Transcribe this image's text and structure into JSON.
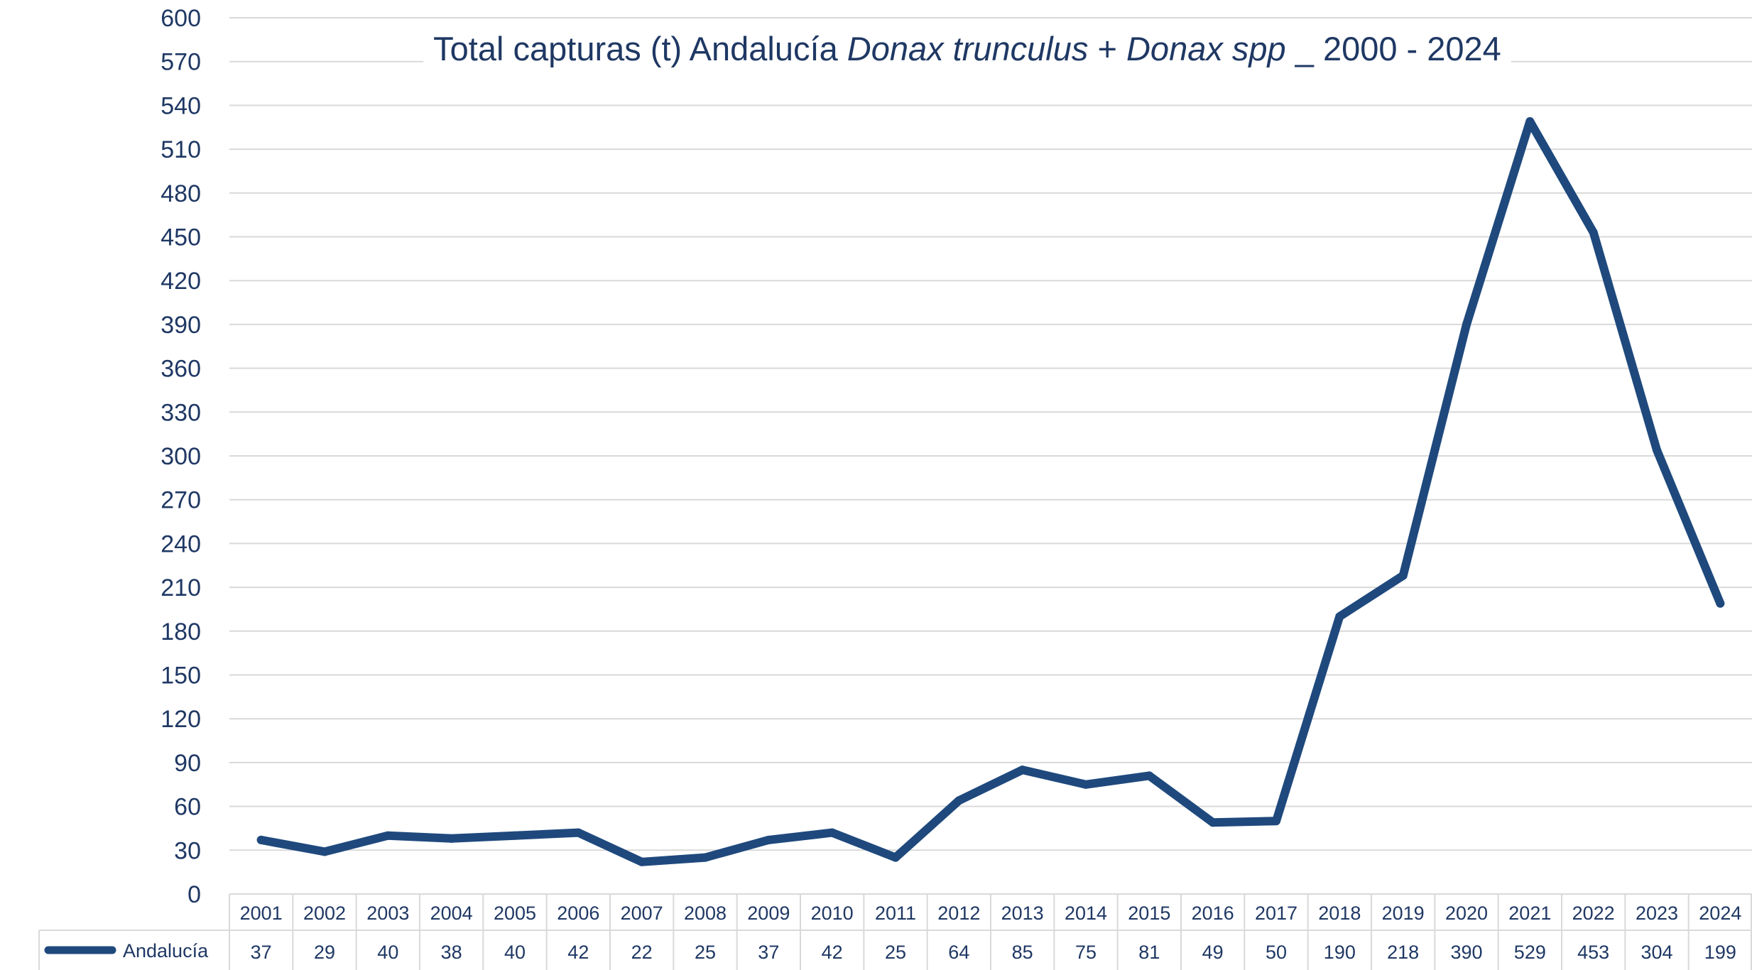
{
  "chart_data": {
    "type": "line",
    "title": {
      "parts": [
        {
          "text": "Total capturas (t) Andalucía ",
          "italic": false
        },
        {
          "text": "Donax trunculus",
          "italic": true
        },
        {
          "text": " + ",
          "italic": false
        },
        {
          "text": "Donax spp",
          "italic": true
        },
        {
          "text": " _ 2000 - 2024",
          "italic": false
        }
      ]
    },
    "categories": [
      "2001",
      "2002",
      "2003",
      "2004",
      "2005",
      "2006",
      "2007",
      "2008",
      "2009",
      "2010",
      "2011",
      "2012",
      "2013",
      "2014",
      "2015",
      "2016",
      "2017",
      "2018",
      "2019",
      "2020",
      "2021",
      "2022",
      "2023",
      "2024"
    ],
    "series": [
      {
        "name": "Andalucía",
        "color": "#1f497d",
        "values": [
          37,
          29,
          40,
          38,
          40,
          42,
          22,
          25,
          37,
          42,
          25,
          64,
          85,
          75,
          81,
          49,
          50,
          190,
          218,
          390,
          529,
          453,
          304,
          199
        ]
      }
    ],
    "ylim": [
      0,
      600
    ],
    "ytick_step": 30,
    "grid": true,
    "data_table": true,
    "colors": {
      "text": "#1f3864",
      "gridline": "#d9d9d9",
      "table_border": "#d9d9d9"
    }
  }
}
